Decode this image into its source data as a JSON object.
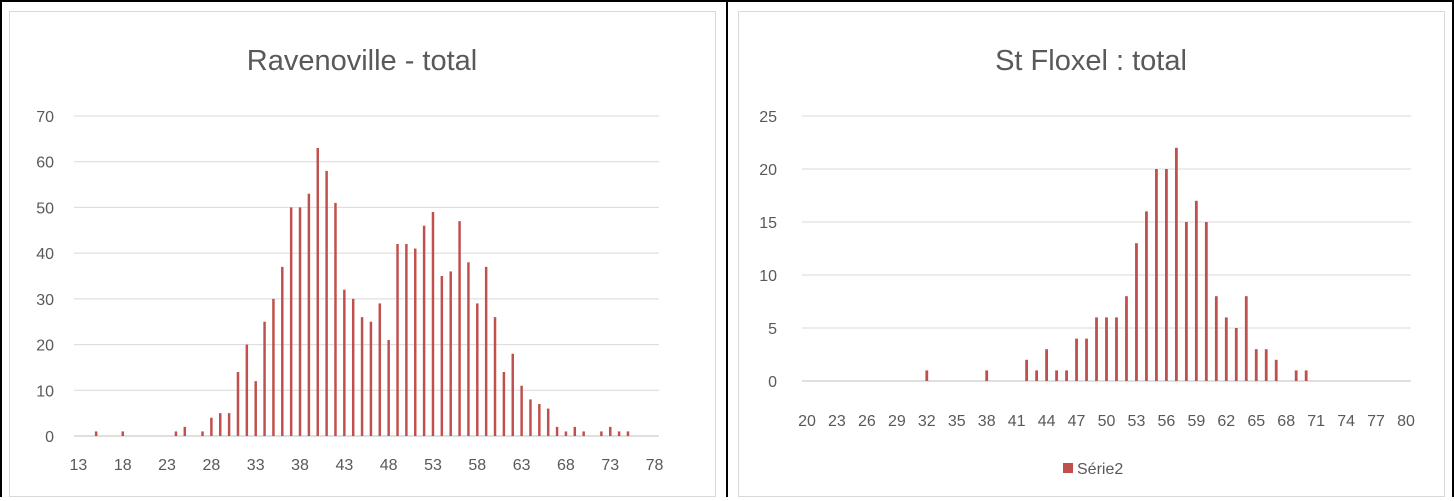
{
  "colors": {
    "bar": "#c0504d",
    "grid": "#d9d9d9",
    "axis": "#bfbfbf",
    "text": "#595959",
    "panel_border": "#d9d9d9",
    "table_border": "#000000"
  },
  "chart_data": [
    {
      "type": "bar",
      "title": "Ravenoville - total",
      "xlabel": "",
      "ylabel": "",
      "ylim": [
        0,
        70
      ],
      "yticks": [
        0,
        10,
        20,
        30,
        40,
        50,
        60,
        70
      ],
      "x_tick_labels": [
        "13",
        "18",
        "23",
        "28",
        "33",
        "38",
        "43",
        "48",
        "53",
        "58",
        "63",
        "68",
        "73",
        "78"
      ],
      "grid": true,
      "legend": null,
      "categories": [
        13,
        14,
        15,
        16,
        17,
        18,
        19,
        20,
        21,
        22,
        23,
        24,
        25,
        26,
        27,
        28,
        29,
        30,
        31,
        32,
        33,
        34,
        35,
        36,
        37,
        38,
        39,
        40,
        41,
        42,
        43,
        44,
        45,
        46,
        47,
        48,
        49,
        50,
        51,
        52,
        53,
        54,
        55,
        56,
        57,
        58,
        59,
        60,
        61,
        62,
        63,
        64,
        65,
        66,
        67,
        68,
        69,
        70,
        71,
        72,
        73,
        74,
        75,
        76,
        77,
        78
      ],
      "values": [
        0,
        0,
        1,
        0,
        0,
        1,
        0,
        0,
        0,
        0,
        0,
        1,
        2,
        0,
        1,
        4,
        5,
        5,
        14,
        20,
        12,
        25,
        30,
        37,
        50,
        50,
        53,
        63,
        58,
        51,
        32,
        30,
        26,
        25,
        29,
        21,
        42,
        42,
        41,
        46,
        49,
        35,
        36,
        47,
        38,
        29,
        37,
        26,
        14,
        18,
        11,
        8,
        7,
        6,
        2,
        1,
        2,
        1,
        0,
        1,
        2,
        1,
        1,
        0,
        0,
        0
      ]
    },
    {
      "type": "bar",
      "title": "St Floxel : total",
      "xlabel": "",
      "ylabel": "",
      "ylim": [
        0,
        25
      ],
      "yticks": [
        0,
        5,
        10,
        15,
        20,
        25
      ],
      "x_tick_labels": [
        "20",
        "23",
        "26",
        "29",
        "32",
        "35",
        "38",
        "41",
        "44",
        "47",
        "50",
        "53",
        "56",
        "59",
        "62",
        "65",
        "68",
        "71",
        "74",
        "77",
        "80"
      ],
      "grid": true,
      "legend": "bottom",
      "categories": [
        20,
        21,
        22,
        23,
        24,
        25,
        26,
        27,
        28,
        29,
        30,
        31,
        32,
        33,
        34,
        35,
        36,
        37,
        38,
        39,
        40,
        41,
        42,
        43,
        44,
        45,
        46,
        47,
        48,
        49,
        50,
        51,
        52,
        53,
        54,
        55,
        56,
        57,
        58,
        59,
        60,
        61,
        62,
        63,
        64,
        65,
        66,
        67,
        68,
        69,
        70,
        71,
        72,
        73,
        74,
        75,
        76,
        77,
        78,
        79,
        80
      ],
      "series": [
        {
          "name": "Série2",
          "values": [
            0,
            0,
            0,
            0,
            0,
            0,
            0,
            0,
            0,
            0,
            0,
            0,
            1,
            0,
            0,
            0,
            0,
            0,
            1,
            0,
            0,
            0,
            2,
            1,
            3,
            1,
            1,
            4,
            4,
            6,
            6,
            6,
            8,
            13,
            16,
            20,
            20,
            22,
            15,
            17,
            15,
            8,
            6,
            5,
            8,
            3,
            3,
            2,
            0,
            1,
            1,
            0,
            0,
            0,
            0,
            0,
            0,
            0,
            0,
            0,
            0
          ]
        }
      ]
    }
  ]
}
